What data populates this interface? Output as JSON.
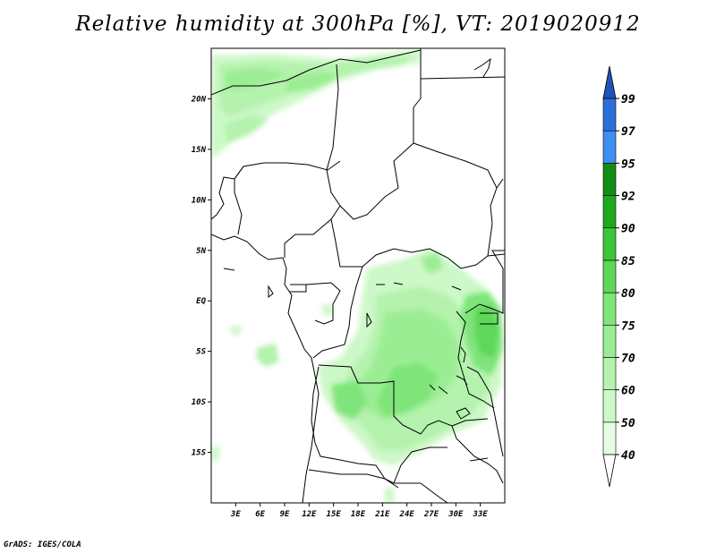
{
  "title": "Relative humidity at 300hPa [%], VT: 2019020912",
  "credit": "GrADS: IGES/COLA",
  "map": {
    "lon_range": [
      0,
      36
    ],
    "lat_range": [
      -20,
      25
    ],
    "lat_ticks": [
      "20N",
      "15N",
      "10N",
      "5N",
      "EQ",
      "5S",
      "10S",
      "15S"
    ],
    "lon_ticks": [
      "3E",
      "6E",
      "9E",
      "12E",
      "15E",
      "18E",
      "21E",
      "24E",
      "27E",
      "30E",
      "33E"
    ]
  },
  "colorbar": {
    "levels": [
      "40",
      "50",
      "60",
      "70",
      "75",
      "80",
      "85",
      "90",
      "92",
      "95",
      "97",
      "99"
    ],
    "colors": [
      "#ffffff",
      "#e6fde3",
      "#cdf8c8",
      "#b4f2ad",
      "#9bed93",
      "#7fe57a",
      "#5fd75a",
      "#3cc63a",
      "#1fa81e",
      "#128c12",
      "#3e8ef0",
      "#2b6fd8",
      "#1f53b8"
    ]
  }
}
